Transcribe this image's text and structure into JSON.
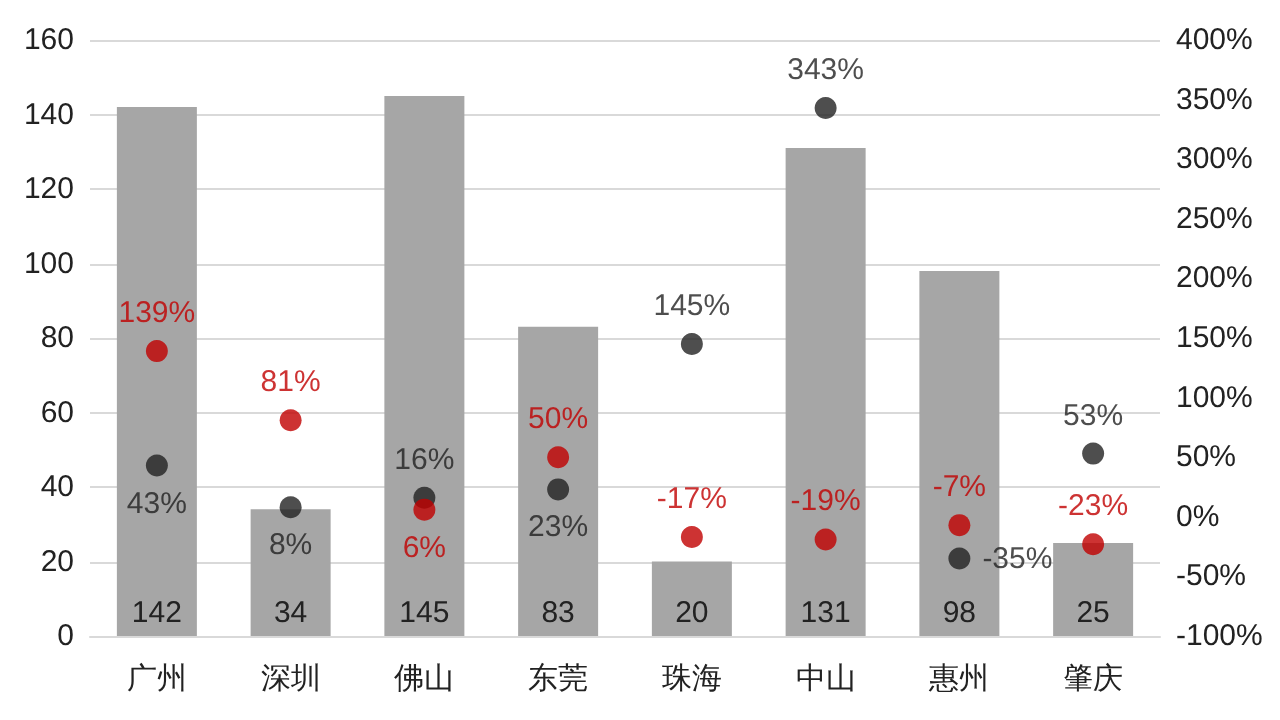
{
  "chart_data": {
    "type": "bar",
    "categories": [
      "广州",
      "深圳",
      "佛山",
      "东莞",
      "珠海",
      "中山",
      "惠州",
      "肇庆"
    ],
    "series": [
      {
        "color": "#a6a6a6",
        "values": [
          142,
          34,
          145,
          83,
          20,
          131,
          98,
          25
        ],
        "value_labels": [
          "142",
          "34",
          "145",
          "83",
          "20",
          "131",
          "98",
          "25"
        ]
      },
      {
        "type": "scatter",
        "axis": "y2",
        "color": "#222222",
        "values": [
          43,
          8,
          16,
          23,
          145,
          343,
          -35,
          53
        ],
        "value_labels": [
          "43%",
          "8%",
          "16%",
          "23%",
          "145%",
          "343%",
          "-35%",
          "53%"
        ]
      },
      {
        "type": "scatter",
        "axis": "y2",
        "color": "#c00000",
        "values": [
          139,
          81,
          6,
          50,
          -17,
          -19,
          -7,
          -23
        ],
        "value_labels": [
          "139%",
          "81%",
          "6%",
          "50%",
          "-17%",
          "-19%",
          "-7%",
          "-23%"
        ]
      }
    ],
    "ylim": [
      0,
      160
    ],
    "yticks": [
      0,
      20,
      40,
      60,
      80,
      100,
      120,
      140,
      160
    ],
    "y2lim": [
      -100,
      400
    ],
    "y2ticks": [
      {
        "value": -100,
        "label": "-100%"
      },
      {
        "value": -50,
        "label": "-50%"
      },
      {
        "value": 0,
        "label": "0%"
      },
      {
        "value": 50,
        "label": "50%"
      },
      {
        "value": 100,
        "label": "100%"
      },
      {
        "value": 150,
        "label": "150%"
      },
      {
        "value": 200,
        "label": "200%"
      },
      {
        "value": 250,
        "label": "250%"
      },
      {
        "value": 300,
        "label": "300%"
      },
      {
        "value": 350,
        "label": "350%"
      },
      {
        "value": 400,
        "label": "400%"
      }
    ],
    "grid": "y",
    "marker": "circle"
  }
}
